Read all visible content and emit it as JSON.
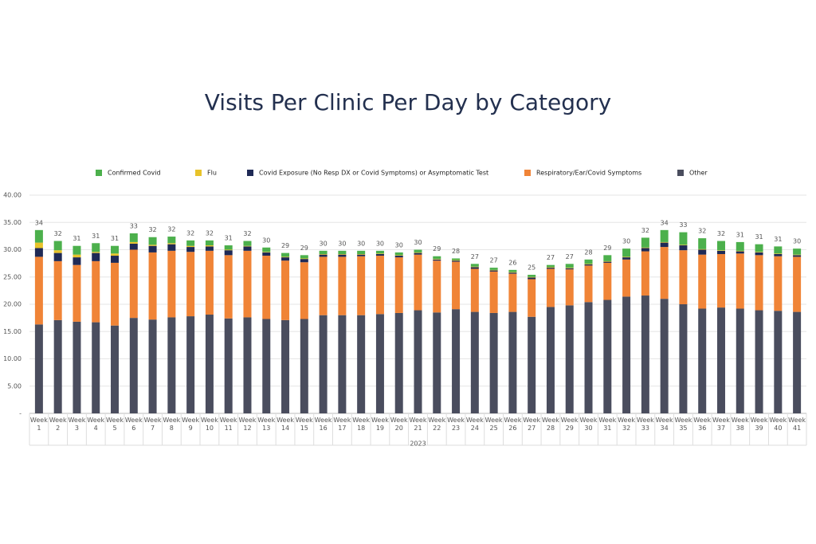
{
  "chart_data": {
    "type": "stacked_bar",
    "title": "Visits Per Clinic Per Day by Category",
    "categories": [
      "Week 1",
      "Week 2",
      "Week 3",
      "Week 4",
      "Week 5",
      "Week 6",
      "Week 7",
      "Week 8",
      "Week 9",
      "Week 10",
      "Week 11",
      "Week 12",
      "Week 13",
      "Week 14",
      "Week 15",
      "Week 16",
      "Week 17",
      "Week 18",
      "Week 19",
      "Week 20",
      "Week 21",
      "Week 22",
      "Week 23",
      "Week 24",
      "Week 25",
      "Week 26",
      "Week 27",
      "Week 28",
      "Week 29",
      "Week 30",
      "Week 31",
      "Week 32",
      "Week 33",
      "Week 34",
      "Week 35",
      "Week 36",
      "Week 37",
      "Week 38",
      "Week 39",
      "Week 40",
      "Week 41"
    ],
    "x_group_label": "2023",
    "series": [
      {
        "name": "Confirmed Covid",
        "color": "#4cb04c",
        "values": [
          2.3,
          1.7,
          1.6,
          1.6,
          1.4,
          1.6,
          1.4,
          1.2,
          1.0,
          0.9,
          0.8,
          0.9,
          0.8,
          0.7,
          0.6,
          0.6,
          0.6,
          0.6,
          0.5,
          0.5,
          0.5,
          0.5,
          0.3,
          0.5,
          0.4,
          0.4,
          0.4,
          0.4,
          0.7,
          0.8,
          1.1,
          1.5,
          1.8,
          2.2,
          2.3,
          2.0,
          1.7,
          1.6,
          1.4,
          1.3,
          1.1
        ]
      },
      {
        "name": "Flu",
        "color": "#e8c32a",
        "values": [
          1.0,
          0.5,
          0.5,
          0.2,
          0.4,
          0.3,
          0.2,
          0.2,
          0.2,
          0.2,
          0.1,
          0.1,
          0.1,
          0.1,
          0.1,
          0.1,
          0.1,
          0.1,
          0.1,
          0.1,
          0.1,
          0.1,
          0.1,
          0.1,
          0.1,
          0.1,
          0.1,
          0.1,
          0.1,
          0.1,
          0.1,
          0.1,
          0.1,
          0.1,
          0.1,
          0.1,
          0.1,
          0.1,
          0.1,
          0.1,
          0.1
        ]
      },
      {
        "name": "Covid Exposure (No Resp DX or Covid Symptoms) or Asymptomatic Test",
        "color": "#1f2a56",
        "values": [
          1.6,
          1.5,
          1.4,
          1.5,
          1.3,
          1.1,
          1.2,
          1.2,
          0.9,
          0.8,
          0.9,
          0.8,
          0.6,
          0.6,
          0.6,
          0.4,
          0.4,
          0.3,
          0.3,
          0.3,
          0.3,
          0.2,
          0.2,
          0.3,
          0.2,
          0.2,
          0.3,
          0.2,
          0.2,
          0.2,
          0.2,
          0.4,
          0.6,
          0.8,
          0.9,
          0.9,
          0.6,
          0.4,
          0.5,
          0.4,
          0.3
        ]
      },
      {
        "name": "Respiratory/Ear/Covid Symptoms",
        "color": "#f08437",
        "values": [
          12.4,
          10.8,
          10.4,
          11.2,
          11.5,
          12.5,
          12.3,
          12.2,
          11.8,
          11.7,
          11.6,
          12.2,
          11.6,
          10.9,
          10.4,
          10.7,
          10.7,
          10.8,
          10.7,
          10.2,
          10.2,
          9.5,
          8.7,
          7.9,
          7.6,
          7.0,
          6.9,
          7.0,
          6.6,
          6.7,
          6.8,
          6.8,
          8.1,
          9.5,
          9.9,
          9.9,
          9.8,
          10.1,
          10.1,
          10.0,
          10.1
        ]
      },
      {
        "name": "Other",
        "color": "#4a4d5e",
        "values": [
          16.3,
          17.1,
          16.8,
          16.7,
          16.1,
          17.5,
          17.2,
          17.6,
          17.8,
          18.1,
          17.4,
          17.6,
          17.3,
          17.1,
          17.3,
          18.0,
          18.0,
          18.0,
          18.2,
          18.4,
          18.9,
          18.5,
          19.1,
          18.6,
          18.4,
          18.6,
          17.7,
          19.5,
          19.8,
          20.4,
          20.8,
          21.4,
          21.6,
          21.0,
          20.0,
          19.2,
          19.4,
          19.2,
          18.9,
          18.8,
          18.6
        ]
      }
    ],
    "totals": [
      34,
      32,
      31,
      31,
      31,
      33,
      32,
      32,
      32,
      32,
      31,
      32,
      30,
      29,
      29,
      30,
      30,
      30,
      30,
      30,
      30,
      29,
      28,
      27,
      27,
      26,
      25,
      27,
      27,
      28,
      29,
      30,
      32,
      34,
      33,
      32,
      32,
      31,
      31,
      31,
      30
    ],
    "ylim": [
      0,
      40
    ],
    "yticks": [
      {
        "value": 0,
        "label": "-"
      },
      {
        "value": 5,
        "label": "5.00"
      },
      {
        "value": 10,
        "label": "10.00"
      },
      {
        "value": 15,
        "label": "15.00"
      },
      {
        "value": 20,
        "label": "20.00"
      },
      {
        "value": 25,
        "label": "25.00"
      },
      {
        "value": 30,
        "label": "30.00"
      },
      {
        "value": 35,
        "label": "35.00"
      },
      {
        "value": 40,
        "label": "40.00"
      }
    ],
    "grid": true
  }
}
